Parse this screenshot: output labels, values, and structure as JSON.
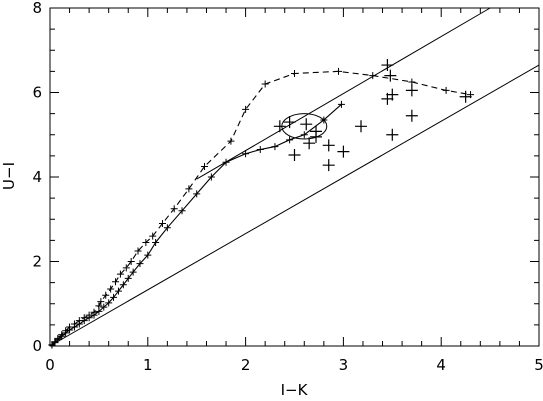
{
  "chart_data": {
    "type": "scatter",
    "xlabel": "I−K",
    "ylabel": "U−I",
    "xlim": [
      0,
      5
    ],
    "ylim": [
      0,
      8
    ],
    "x_ticks": [
      0,
      1,
      2,
      3,
      4,
      5
    ],
    "y_ticks": [
      0,
      2,
      4,
      6,
      8
    ],
    "x_tick_labels": [
      "0",
      "1",
      "2",
      "3",
      "4",
      "5"
    ],
    "y_tick_labels": [
      "0",
      "2",
      "4",
      "6",
      "8"
    ],
    "grid": false,
    "series": [
      {
        "style": "dashed-with-small-plus",
        "points": [
          [
            0.02,
            0.03
          ],
          [
            0.05,
            0.1
          ],
          [
            0.08,
            0.18
          ],
          [
            0.12,
            0.27
          ],
          [
            0.16,
            0.36
          ],
          [
            0.2,
            0.45
          ],
          [
            0.25,
            0.52
          ],
          [
            0.3,
            0.6
          ],
          [
            0.35,
            0.67
          ],
          [
            0.4,
            0.73
          ],
          [
            0.45,
            0.8
          ],
          [
            0.5,
            0.95
          ],
          [
            0.52,
            1.05
          ],
          [
            0.57,
            1.2
          ],
          [
            0.62,
            1.35
          ],
          [
            0.67,
            1.52
          ],
          [
            0.72,
            1.7
          ],
          [
            0.78,
            1.85
          ],
          [
            0.83,
            2.0
          ],
          [
            0.9,
            2.25
          ],
          [
            0.98,
            2.45
          ],
          [
            1.05,
            2.6
          ],
          [
            1.15,
            2.9
          ],
          [
            1.27,
            3.25
          ],
          [
            1.42,
            3.72
          ],
          [
            1.58,
            4.25
          ],
          [
            1.85,
            4.85
          ],
          [
            2.0,
            5.6
          ],
          [
            2.2,
            6.2
          ],
          [
            2.5,
            6.45
          ],
          [
            2.95,
            6.5
          ],
          [
            3.3,
            6.4
          ],
          [
            3.7,
            6.25
          ],
          [
            4.05,
            6.05
          ],
          [
            4.3,
            5.95
          ]
        ]
      },
      {
        "style": "solid-with-small-plus",
        "points": [
          [
            0.02,
            0.02
          ],
          [
            0.05,
            0.08
          ],
          [
            0.08,
            0.15
          ],
          [
            0.12,
            0.23
          ],
          [
            0.16,
            0.31
          ],
          [
            0.2,
            0.38
          ],
          [
            0.25,
            0.45
          ],
          [
            0.3,
            0.52
          ],
          [
            0.35,
            0.6
          ],
          [
            0.4,
            0.67
          ],
          [
            0.45,
            0.73
          ],
          [
            0.5,
            0.82
          ],
          [
            0.55,
            0.92
          ],
          [
            0.6,
            1.02
          ],
          [
            0.65,
            1.15
          ],
          [
            0.7,
            1.3
          ],
          [
            0.75,
            1.45
          ],
          [
            0.8,
            1.6
          ],
          [
            0.85,
            1.75
          ],
          [
            0.92,
            1.95
          ],
          [
            1.0,
            2.15
          ],
          [
            1.08,
            2.45
          ],
          [
            1.2,
            2.8
          ],
          [
            1.35,
            3.2
          ],
          [
            1.5,
            3.6
          ],
          [
            1.65,
            4.0
          ],
          [
            1.8,
            4.35
          ],
          [
            2.0,
            4.55
          ],
          [
            2.15,
            4.65
          ],
          [
            2.3,
            4.72
          ],
          [
            2.45,
            4.88
          ],
          [
            2.6,
            5.0
          ],
          [
            2.8,
            5.35
          ],
          [
            2.98,
            5.72
          ]
        ]
      },
      {
        "style": "large-plus",
        "points": [
          [
            2.35,
            5.2
          ],
          [
            2.45,
            5.3
          ],
          [
            2.62,
            5.25
          ],
          [
            2.72,
            5.08
          ],
          [
            2.65,
            4.8
          ],
          [
            2.72,
            4.95
          ],
          [
            2.5,
            4.52
          ],
          [
            2.85,
            4.75
          ],
          [
            2.85,
            4.28
          ],
          [
            3.0,
            4.6
          ],
          [
            3.18,
            5.2
          ],
          [
            3.45,
            6.65
          ],
          [
            3.48,
            6.4
          ],
          [
            3.45,
            5.85
          ],
          [
            3.5,
            5.95
          ],
          [
            3.5,
            5.0
          ],
          [
            3.7,
            6.05
          ],
          [
            3.7,
            5.45
          ],
          [
            4.25,
            5.9
          ]
        ]
      }
    ],
    "reference_lines": [
      [
        [
          1.5,
          3.95
        ],
        [
          4.5,
          8.0
        ]
      ],
      [
        [
          0.0,
          0.0
        ],
        [
          5.0,
          6.65
        ]
      ]
    ],
    "ellipse": {
      "center": [
        2.6,
        5.2
      ],
      "semi_axes": [
        0.23,
        0.3
      ]
    }
  }
}
